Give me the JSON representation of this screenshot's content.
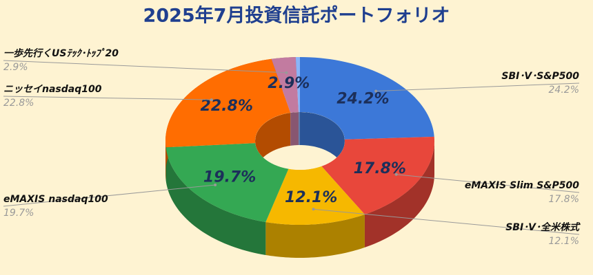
{
  "chart_data": {
    "type": "donut",
    "title": "2025年7月投資信託ポートフォリオ",
    "categories": [
      "SBI･V･S&P500",
      "eMAXIS Slim S&P500",
      "SBI･V･全米株式",
      "eMAXIS nasdaq100",
      "ニッセイnasdaq100",
      "一歩先行くUSﾃｯｸ･ﾄｯﾌﾟ20",
      null
    ],
    "values": [
      24.2,
      17.8,
      12.1,
      19.7,
      22.8,
      2.9,
      0.5
    ],
    "value_labels": [
      "24.2%",
      "17.8%",
      "12.1%",
      "19.7%",
      "22.8%",
      "2.9%",
      null
    ],
    "colors": [
      "#3c78d8",
      "#e8473b",
      "#f6b800",
      "#34a853",
      "#ff6d01",
      "#c27ba0",
      "#8ab4f8"
    ]
  }
}
